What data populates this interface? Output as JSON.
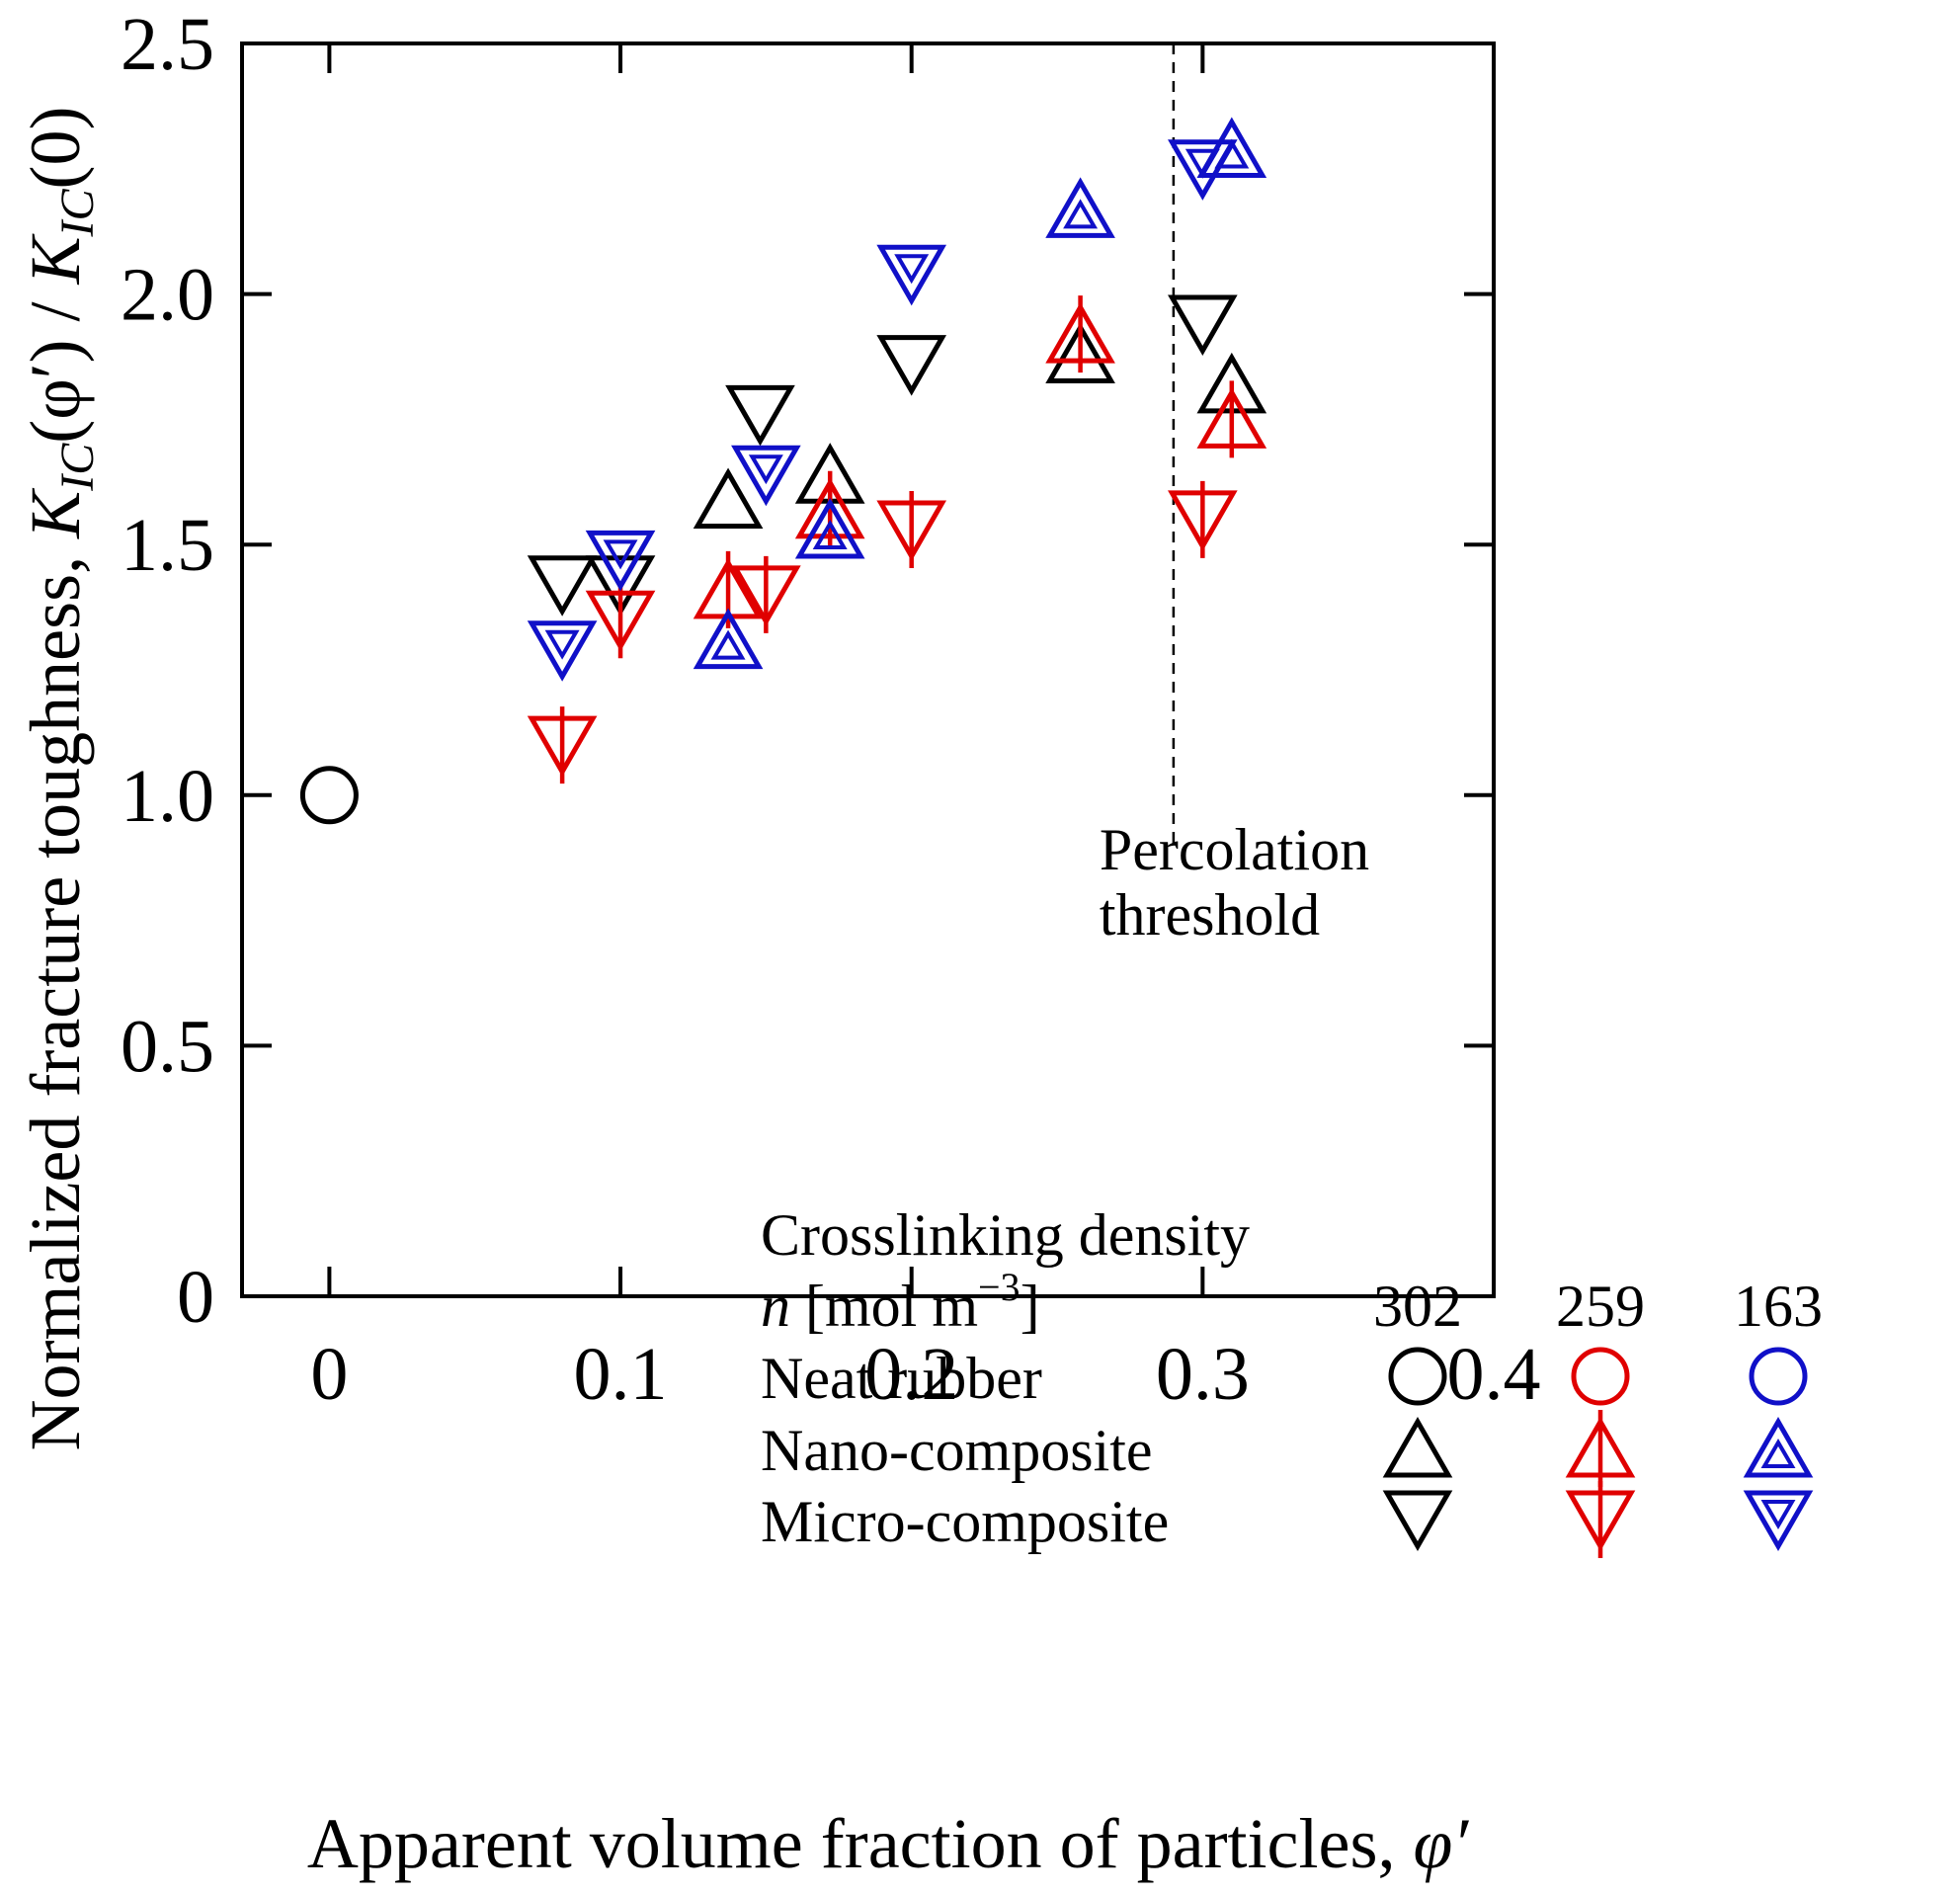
{
  "chart_data": {
    "type": "scatter",
    "title": "",
    "xlabel": {
      "prefix": "Apparent volume fraction of particles, ",
      "symbol": "φ′"
    },
    "ylabel": {
      "prefix": "Normalized fracture toughness, ",
      "k_main": "K",
      "k_sub": "IC",
      "num_arg": "(φ′)",
      "separator": " / ",
      "den_arg": "(0)"
    },
    "xlim": [
      -0.03,
      0.4
    ],
    "ylim": [
      0,
      2.5
    ],
    "x_ticks": [
      0,
      0.1,
      0.2,
      0.3,
      0.4
    ],
    "x_tick_labels": [
      "0",
      "0.1",
      "0.2",
      "0.3",
      "0.4"
    ],
    "y_ticks": [
      0,
      0.5,
      1.0,
      1.5,
      2.0,
      2.5
    ],
    "y_tick_labels": [
      "0",
      "0.5",
      "1.0",
      "1.5",
      "2.0",
      "2.5"
    ],
    "grid": false,
    "colors": {
      "n302": "#000000",
      "n259": "#e00000",
      "n163": "#1010c8"
    },
    "annotation": {
      "x": 0.29,
      "y_range": [
        0.9,
        2.5
      ],
      "line_style": "dashed",
      "lines": [
        "Percolation",
        "threshold"
      ]
    },
    "series": [
      {
        "name": "Neat rubber",
        "density": "302",
        "marker": "circle",
        "color": "#000000",
        "points": [
          [
            0,
            1.0
          ]
        ]
      },
      {
        "name": "Nano-composite",
        "density": "302",
        "marker": "triangle-up",
        "color": "#000000",
        "points": [
          [
            0.137,
            1.59
          ],
          [
            0.172,
            1.64
          ],
          [
            0.258,
            1.88
          ],
          [
            0.31,
            1.82
          ]
        ]
      },
      {
        "name": "Micro-composite",
        "density": "302",
        "marker": "triangle-down",
        "color": "#000000",
        "points": [
          [
            0.08,
            1.42
          ],
          [
            0.1,
            1.42
          ],
          [
            0.148,
            1.76
          ],
          [
            0.2,
            1.86
          ],
          [
            0.3,
            1.94
          ]
        ]
      },
      {
        "name": "Nano-composite",
        "density": "259",
        "marker": "triangle-up",
        "color": "#e00000",
        "points": [
          [
            0.137,
            1.41
          ],
          [
            0.172,
            1.57
          ],
          [
            0.258,
            1.92
          ],
          [
            0.31,
            1.75
          ]
        ]
      },
      {
        "name": "Micro-composite",
        "density": "259",
        "marker": "triangle-down",
        "color": "#e00000",
        "points": [
          [
            0.08,
            1.1
          ],
          [
            0.1,
            1.35
          ],
          [
            0.15,
            1.4
          ],
          [
            0.2,
            1.53
          ],
          [
            0.3,
            1.55
          ]
        ]
      },
      {
        "name": "Nano-composite",
        "density": "163",
        "marker": "triangle-up",
        "color": "#1010c8",
        "points": [
          [
            0.137,
            1.31
          ],
          [
            0.172,
            1.53
          ],
          [
            0.258,
            2.17
          ],
          [
            0.31,
            2.29
          ]
        ]
      },
      {
        "name": "Micro-composite",
        "density": "163",
        "marker": "triangle-down",
        "color": "#1010c8",
        "points": [
          [
            0.08,
            1.29
          ],
          [
            0.1,
            1.47
          ],
          [
            0.15,
            1.64
          ],
          [
            0.2,
            2.04
          ],
          [
            0.3,
            2.25
          ]
        ]
      }
    ],
    "legend": {
      "placement": "bottom-right",
      "title": "Crosslinking density",
      "unit_label": {
        "symbol": "n",
        "text": " [mol m",
        "exponent": "−3",
        "close": "]"
      },
      "densities": [
        "302",
        "259",
        "163"
      ],
      "rows": [
        {
          "label": "Neat rubber",
          "marker": "circle"
        },
        {
          "label": "Nano-composite",
          "marker": "triangle-up"
        },
        {
          "label": "Micro-composite",
          "marker": "triangle-down"
        }
      ]
    }
  }
}
